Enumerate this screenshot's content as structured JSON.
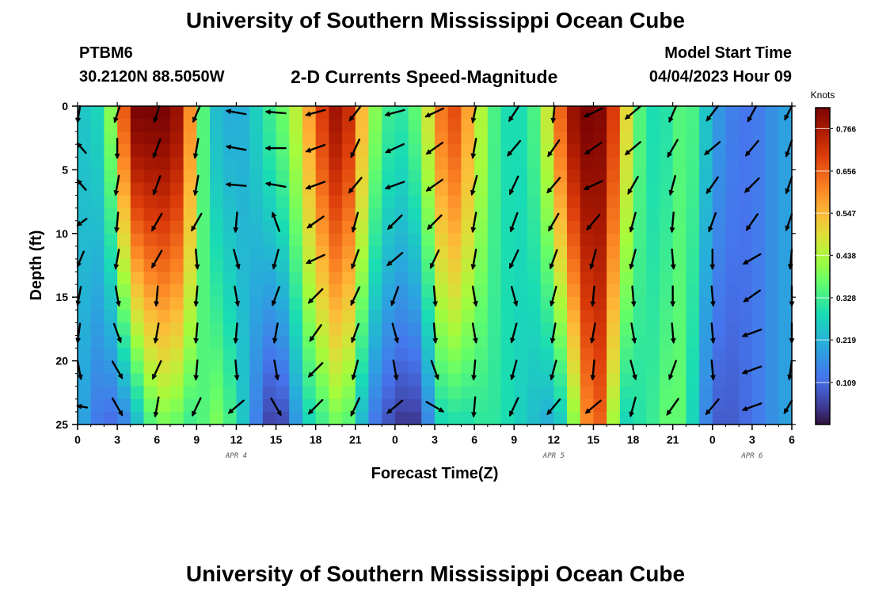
{
  "header": {
    "title": "University of Southern Mississippi Ocean Cube",
    "station": "PTBM6",
    "coords": "30.2120N  88.5050W",
    "subtitle": "2-D Currents Speed-Magnitude",
    "model_start_label": "Model Start Time",
    "model_start_value": "04/04/2023 Hour 09"
  },
  "footer": {
    "title": "University of Southern Mississippi Ocean Cube"
  },
  "chart_data": {
    "type": "heatmap",
    "xlabel": "Forecast Time(Z)",
    "ylabel": "Depth (ft)",
    "x_tick_labels": [
      "0",
      "3",
      "6",
      "9",
      "12",
      "15",
      "18",
      "21",
      "0",
      "3",
      "6",
      "9",
      "12",
      "15",
      "18",
      "21",
      "0",
      "3",
      "6"
    ],
    "xlim": [
      0,
      54
    ],
    "y_ticks": [
      0,
      5,
      10,
      15,
      20,
      25
    ],
    "ylim": [
      0,
      25
    ],
    "y_inverted": true,
    "day_labels": [
      {
        "text": "APR 4",
        "x": 12
      },
      {
        "text": "APR 5",
        "x": 36
      },
      {
        "text": "APR 6",
        "x": 51
      }
    ],
    "colorbar": {
      "unit": "Knots",
      "ticks": [
        "0.766",
        "0.656",
        "0.547",
        "0.438",
        "0.328",
        "0.219",
        "0.109"
      ],
      "tick_values": [
        0.766,
        0.656,
        0.547,
        0.438,
        0.328,
        0.219,
        0.109
      ],
      "min": 0,
      "max": 0.82,
      "colormap": "turbo"
    },
    "speed_profile": {
      "x": [
        0,
        1,
        2,
        3,
        4,
        5,
        6,
        7,
        8,
        9,
        10,
        11,
        12,
        13,
        14,
        15,
        16,
        17,
        18,
        19,
        20,
        21,
        22,
        23,
        24,
        25,
        26,
        27,
        28,
        29,
        30,
        31,
        32,
        33,
        34,
        35,
        36,
        37,
        38,
        39,
        40,
        41,
        42,
        43,
        44,
        45,
        46,
        47,
        48,
        49,
        50,
        51,
        52,
        53,
        54
      ],
      "surface_speed": [
        0.25,
        0.25,
        0.3,
        0.5,
        0.82,
        0.82,
        0.82,
        0.82,
        0.75,
        0.45,
        0.25,
        0.22,
        0.2,
        0.23,
        0.3,
        0.35,
        0.4,
        0.5,
        0.65,
        0.75,
        0.8,
        0.65,
        0.45,
        0.35,
        0.3,
        0.32,
        0.4,
        0.55,
        0.7,
        0.65,
        0.5,
        0.38,
        0.3,
        0.28,
        0.3,
        0.38,
        0.55,
        0.75,
        0.82,
        0.82,
        0.8,
        0.6,
        0.4,
        0.3,
        0.28,
        0.32,
        0.38,
        0.3,
        0.2,
        0.15,
        0.13,
        0.12,
        0.15,
        0.18,
        0.2
      ],
      "deep_speed": [
        0.22,
        0.16,
        0.1,
        0.12,
        0.16,
        0.3,
        0.38,
        0.38,
        0.35,
        0.3,
        0.4,
        0.38,
        0.3,
        0.2,
        0.08,
        0.03,
        0.1,
        0.25,
        0.3,
        0.35,
        0.4,
        0.3,
        0.15,
        0.1,
        0.05,
        0.03,
        0.05,
        0.25,
        0.3,
        0.28,
        0.3,
        0.32,
        0.3,
        0.28,
        0.25,
        0.22,
        0.2,
        0.3,
        0.5,
        0.7,
        0.6,
        0.25,
        0.3,
        0.3,
        0.35,
        0.38,
        0.35,
        0.2,
        0.1,
        0.08,
        0.1,
        0.12,
        0.15,
        0.18,
        0.2
      ],
      "deep_depth_ft": 25
    },
    "vectors": {
      "times": [
        0,
        3,
        6,
        9,
        12,
        15,
        18,
        21,
        24,
        27,
        30,
        33,
        36,
        39,
        42,
        45,
        48,
        51,
        54
      ],
      "depths_ft": [
        0.5,
        3.3,
        6.2,
        9.1,
        12,
        14.9,
        17.8,
        20.7,
        23.6
      ],
      "direction_cw_from_north_deg": [
        [
          195,
          195,
          195,
          200,
          280,
          275,
          255,
          215,
          255,
          245,
          190,
          210,
          185,
          245,
          230,
          200,
          215,
          205,
          225
        ],
        [
          300,
          180,
          200,
          190,
          280,
          270,
          250,
          205,
          245,
          235,
          190,
          220,
          215,
          235,
          230,
          210,
          230,
          220,
          215
        ],
        [
          300,
          190,
          200,
          190,
          275,
          280,
          250,
          220,
          250,
          235,
          195,
          205,
          220,
          245,
          210,
          195,
          215,
          225,
          215
        ],
        [
          250,
          185,
          210,
          210,
          185,
          340,
          235,
          195,
          225,
          225,
          190,
          200,
          210,
          220,
          195,
          185,
          200,
          215,
          215
        ],
        [
          220,
          190,
          210,
          175,
          165,
          195,
          245,
          200,
          230,
          205,
          190,
          205,
          200,
          195,
          195,
          175,
          180,
          240,
          190
        ],
        [
          200,
          170,
          185,
          185,
          170,
          200,
          225,
          205,
          200,
          175,
          170,
          165,
          195,
          185,
          175,
          180,
          175,
          235,
          180
        ],
        [
          195,
          160,
          190,
          185,
          185,
          190,
          215,
          200,
          165,
          175,
          170,
          195,
          190,
          190,
          170,
          175,
          175,
          250,
          180
        ],
        [
          160,
          150,
          205,
          185,
          175,
          170,
          225,
          195,
          170,
          160,
          185,
          195,
          195,
          185,
          165,
          200,
          175,
          250,
          195
        ],
        [
          275,
          150,
          190,
          205,
          230,
          150,
          225,
          205,
          230,
          120,
          185,
          205,
          220,
          230,
          195,
          215,
          220,
          250,
          230
        ]
      ]
    }
  }
}
